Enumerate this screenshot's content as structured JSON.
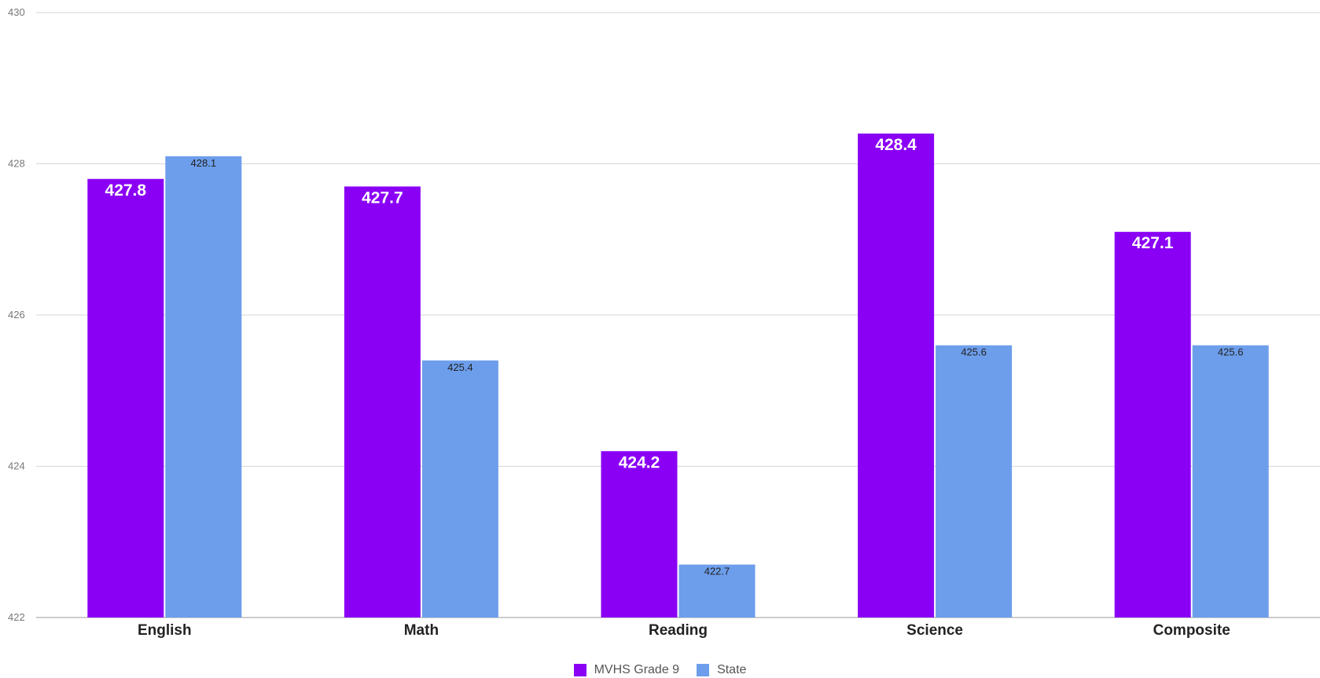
{
  "chart_data": {
    "type": "bar",
    "categories": [
      "English",
      "Math",
      "Reading",
      "Science",
      "Composite"
    ],
    "series": [
      {
        "name": "MVHS Grade 9",
        "color": "#8a00f5",
        "values": [
          427.8,
          427.7,
          424.2,
          428.4,
          427.1
        ]
      },
      {
        "name": "State",
        "color": "#6d9eeb",
        "values": [
          428.1,
          425.4,
          422.7,
          425.6,
          425.6
        ]
      }
    ],
    "ylim": [
      422,
      430
    ],
    "yticks": [
      "422",
      "424",
      "426",
      "428",
      "430"
    ],
    "grid": true,
    "legend_position": "bottom"
  }
}
